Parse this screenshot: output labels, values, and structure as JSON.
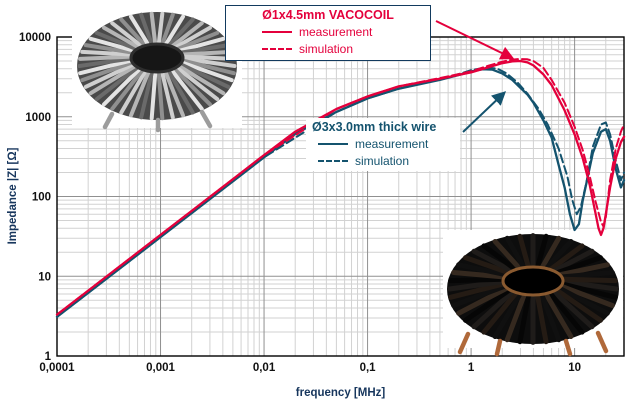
{
  "axes": {
    "x_label": "frequency [MHz]",
    "y_label": "Impedance |Z| [Ω]",
    "x_ticks": [
      "0,0001",
      "0,001",
      "0,01",
      "0,1",
      "1",
      "10"
    ],
    "y_ticks": [
      "1",
      "10",
      "100",
      "1000",
      "10000"
    ]
  },
  "legend_vacocoil": {
    "title": "Ø1x4.5mm VACOCOIL",
    "measurement": "measurement",
    "simulation": "simulation",
    "color": "#e4003c"
  },
  "legend_thickwire": {
    "title": "Ø3x3.0mm thick wire",
    "measurement": "measurement",
    "simulation": "simulation",
    "color": "#14536e"
  },
  "icons": {
    "vacocoil_photo": "toroid-coil-photo",
    "thickwire_photo": "toroid-coil-photo"
  },
  "chart_data": {
    "type": "line",
    "title": "",
    "xlabel": "frequency [MHz]",
    "ylabel": "Impedance |Z| [Ω]",
    "x_scale": "log",
    "y_scale": "log",
    "x_range": [
      0.0001,
      30
    ],
    "y_range": [
      1,
      10000
    ],
    "grid": true,
    "legend_position": "inside-top",
    "series": [
      {
        "name": "thick wire simulation",
        "color": "#14536e",
        "style": "dashed",
        "x": [
          0.0001,
          0.0005,
          0.001,
          0.005,
          0.01,
          0.05,
          0.1,
          0.2,
          0.5,
          0.8,
          1,
          1.4,
          1.8,
          2.2,
          2.8,
          3.5,
          4.5,
          5.5,
          7,
          8.5,
          9.5,
          10.5,
          11.5,
          13,
          15,
          18,
          20,
          22,
          25,
          28,
          30
        ],
        "y": [
          3.1,
          15.5,
          31,
          155,
          310,
          1150,
          1700,
          2250,
          2950,
          3500,
          3850,
          4150,
          4000,
          3500,
          2700,
          1950,
          1250,
          800,
          400,
          180,
          90,
          60,
          75,
          150,
          420,
          800,
          850,
          600,
          280,
          160,
          200
        ]
      },
      {
        "name": "thick wire measurement",
        "color": "#14536e",
        "style": "solid",
        "x": [
          0.0001,
          0.0002,
          0.0005,
          0.001,
          0.002,
          0.005,
          0.01,
          0.02,
          0.05,
          0.1,
          0.2,
          0.5,
          0.8,
          1,
          1.3,
          1.6,
          2,
          2.5,
          3,
          3.5,
          4,
          5,
          6,
          7,
          8,
          9,
          10,
          11,
          12,
          15,
          18,
          20,
          22,
          25,
          28,
          30
        ],
        "y": [
          3.1,
          6.2,
          15.5,
          31,
          62,
          155,
          310,
          610,
          1150,
          1700,
          2250,
          2900,
          3400,
          3700,
          3950,
          3900,
          3500,
          2900,
          2300,
          1900,
          1500,
          900,
          550,
          250,
          130,
          60,
          38,
          45,
          90,
          350,
          650,
          700,
          500,
          220,
          130,
          160
        ]
      },
      {
        "name": "VACOCOIL simulation",
        "color": "#e4003c",
        "style": "dashed",
        "x": [
          0.0001,
          0.0005,
          0.001,
          0.005,
          0.01,
          0.05,
          0.1,
          0.2,
          0.5,
          1,
          1.5,
          2,
          2.5,
          3,
          3.5,
          4,
          5,
          6,
          8,
          10,
          12,
          14,
          16,
          18,
          19,
          20,
          22,
          25,
          28,
          30
        ],
        "y": [
          3.3,
          16.5,
          33,
          165,
          330,
          1250,
          1800,
          2400,
          3050,
          3700,
          4400,
          4900,
          5200,
          5300,
          5250,
          5000,
          4100,
          2900,
          1500,
          750,
          380,
          180,
          85,
          48,
          42,
          55,
          160,
          400,
          650,
          800
        ]
      },
      {
        "name": "VACOCOIL measurement",
        "color": "#e4003c",
        "style": "solid",
        "x": [
          0.0001,
          0.0002,
          0.0005,
          0.001,
          0.002,
          0.005,
          0.01,
          0.02,
          0.05,
          0.1,
          0.2,
          0.5,
          1,
          1.5,
          2,
          2.5,
          3,
          3.5,
          4,
          5,
          6,
          8,
          10,
          12,
          14,
          16,
          17,
          18,
          19,
          20,
          22,
          25,
          28,
          30
        ],
        "y": [
          3.3,
          6.6,
          16.5,
          33,
          66,
          165,
          330,
          650,
          1250,
          1800,
          2400,
          3000,
          3600,
          4200,
          4700,
          4950,
          5000,
          4800,
          4400,
          3400,
          2500,
          1200,
          600,
          300,
          140,
          60,
          40,
          33,
          40,
          60,
          130,
          300,
          480,
          560
        ]
      }
    ],
    "annotations": [
      {
        "name": "vacocoil-arrow",
        "color": "#e4003c",
        "from": [
          436,
          21
        ],
        "to": [
          512,
          58
        ]
      },
      {
        "name": "thickwire-arrow",
        "color": "#14536e",
        "from": [
          463,
          132
        ],
        "to": [
          504,
          93
        ]
      }
    ]
  }
}
